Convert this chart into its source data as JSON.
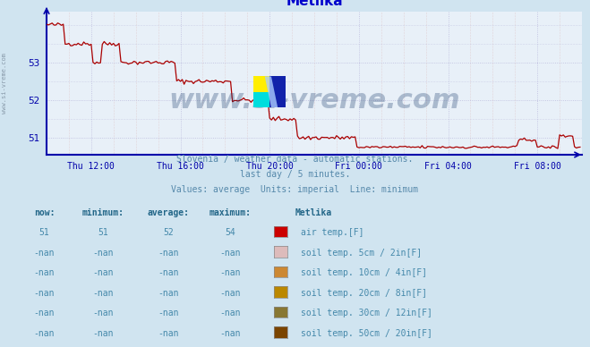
{
  "title": "Metlika",
  "title_color": "#0000cc",
  "bg_color": "#d0e4f0",
  "plot_bg_color": "#e8f0f8",
  "line_color": "#aa0000",
  "axis_color": "#0000aa",
  "ylim": [
    50.55,
    54.35
  ],
  "yticks": [
    51,
    52,
    53
  ],
  "xtick_labels": [
    "Thu 12:00",
    "Thu 16:00",
    "Thu 20:00",
    "Fri 00:00",
    "Fri 04:00",
    "Fri 08:00"
  ],
  "xtick_positions": [
    24,
    72,
    120,
    168,
    216,
    264
  ],
  "total_points": 288,
  "xlim": [
    0,
    288
  ],
  "subtitle1": "Slovenia / weather data - automatic stations.",
  "subtitle2": "last day / 5 minutes.",
  "subtitle3": "Values: average  Units: imperial  Line: minimum",
  "subtitle_color": "#5588aa",
  "watermark": "www.si-vreme.com",
  "watermark_color": "#1a3a6a",
  "watermark_alpha": 0.3,
  "left_label": "www.si-vreme.com",
  "legend_rows": [
    [
      "51",
      "51",
      "52",
      "54",
      "#cc0000",
      "air temp.[F]"
    ],
    [
      "-nan",
      "-nan",
      "-nan",
      "-nan",
      "#ddbbbb",
      "soil temp. 5cm / 2in[F]"
    ],
    [
      "-nan",
      "-nan",
      "-nan",
      "-nan",
      "#cc8833",
      "soil temp. 10cm / 4in[F]"
    ],
    [
      "-nan",
      "-nan",
      "-nan",
      "-nan",
      "#bb8800",
      "soil temp. 20cm / 8in[F]"
    ],
    [
      "-nan",
      "-nan",
      "-nan",
      "-nan",
      "#887733",
      "soil temp. 30cm / 12in[F]"
    ],
    [
      "-nan",
      "-nan",
      "-nan",
      "-nan",
      "#7a4400",
      "soil temp. 50cm / 20in[F]"
    ]
  ],
  "legend_color": "#4488aa",
  "legend_header_color": "#226688",
  "grid_major_color": "#bbbbdd",
  "grid_minor_color": "#ddbbbb"
}
